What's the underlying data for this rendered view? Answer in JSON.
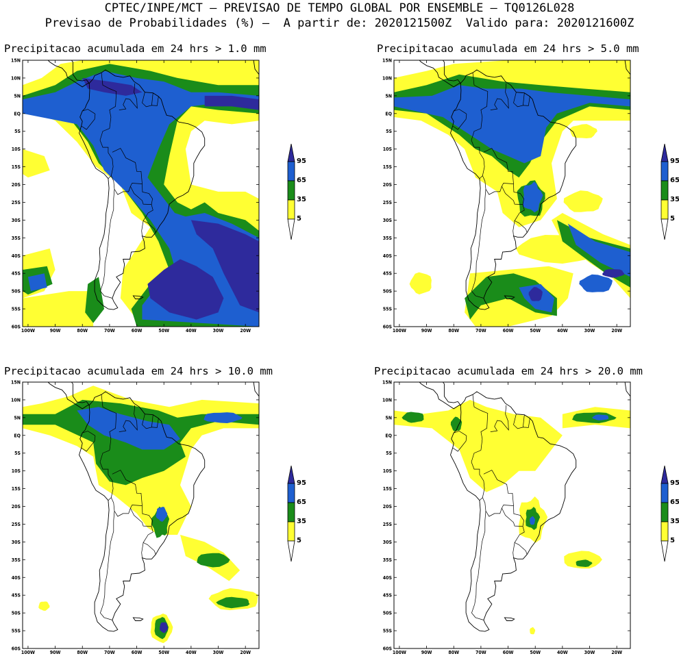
{
  "header": {
    "line1": "CPTEC/INPE/MCT – PREVISAO DE TEMPO GLOBAL POR ENSEMBLE – TQ0126L028",
    "line2": "Previsao de Probabilidades (%) –  A partir de: 2020121500Z  Valido para: 2020121600Z"
  },
  "colors": {
    "c5": "#ffff33",
    "c35": "#1a8c1a",
    "c65": "#1e5fd0",
    "c95": "#2e2a9c"
  },
  "legend": {
    "levels": [
      "95",
      "65",
      "35",
      "5"
    ]
  },
  "axis": {
    "lat_ticks": [
      "15N",
      "10N",
      "5N",
      "EQ",
      "5S",
      "10S",
      "15S",
      "20S",
      "25S",
      "30S",
      "35S",
      "40S",
      "45S",
      "50S",
      "55S",
      "60S"
    ],
    "lon_ticks": [
      "100W",
      "90W",
      "80W",
      "70W",
      "60W",
      "50W",
      "40W",
      "30W",
      "20W"
    ]
  },
  "panels": [
    {
      "title": "Precipitacao acumulada em 24 hrs > 1.0 mm"
    },
    {
      "title": "Precipitacao acumulada em 24 hrs > 5.0 mm"
    },
    {
      "title": "Precipitacao acumulada em 24 hrs > 10.0 mm"
    },
    {
      "title": "Precipitacao acumulada em 24 hrs > 20.0 mm"
    }
  ]
}
